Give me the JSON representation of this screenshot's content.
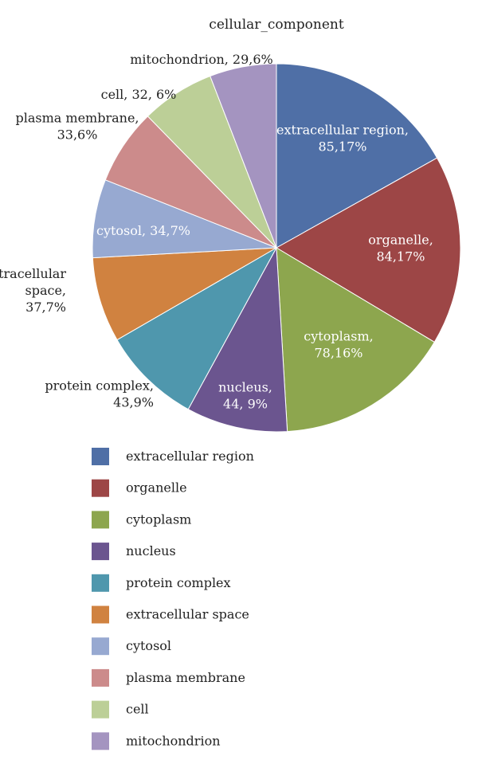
{
  "chart_data": {
    "type": "pie",
    "title": "cellular_component",
    "slices": [
      {
        "category": "extracellular region",
        "value": 85.17,
        "label_lines": [
          "extracellular region,",
          "85,17%"
        ],
        "color": "#4f6fa6"
      },
      {
        "category": "organelle",
        "value": 84.17,
        "label_lines": [
          "organelle,",
          "84,17%"
        ],
        "color": "#9d4646"
      },
      {
        "category": "cytoplasm",
        "value": 78.16,
        "label_lines": [
          "cytoplasm,",
          "78,16%"
        ],
        "color": "#8da64e"
      },
      {
        "category": "nucleus",
        "value": 44.9,
        "label_lines": [
          "nucleus,",
          "44, 9%"
        ],
        "color": "#6b558f"
      },
      {
        "category": "protein complex",
        "value": 43.9,
        "label_lines": [
          "protein complex,",
          "43,9%"
        ],
        "color": "#4f97ad"
      },
      {
        "category": "extracellular space",
        "value": 37.7,
        "label_lines": [
          "extracellular",
          "space,",
          "37,7%"
        ],
        "color": "#d08240"
      },
      {
        "category": "cytosol",
        "value": 34.7,
        "label_lines": [
          "cytosol, 34,7%"
        ],
        "color": "#97a9d1"
      },
      {
        "category": "plasma membrane",
        "value": 33.6,
        "label_lines": [
          "plasma membrane,",
          "33,6%"
        ],
        "color": "#cc8b8b"
      },
      {
        "category": "cell",
        "value": 32.6,
        "label_lines": [
          "cell, 32, 6%"
        ],
        "color": "#bccf97"
      },
      {
        "category": "mitochondrion",
        "value": 29.6,
        "label_lines": [
          "mitochondrion, 29,6%"
        ],
        "color": "#a494c0"
      }
    ],
    "legend_position": "bottom"
  }
}
